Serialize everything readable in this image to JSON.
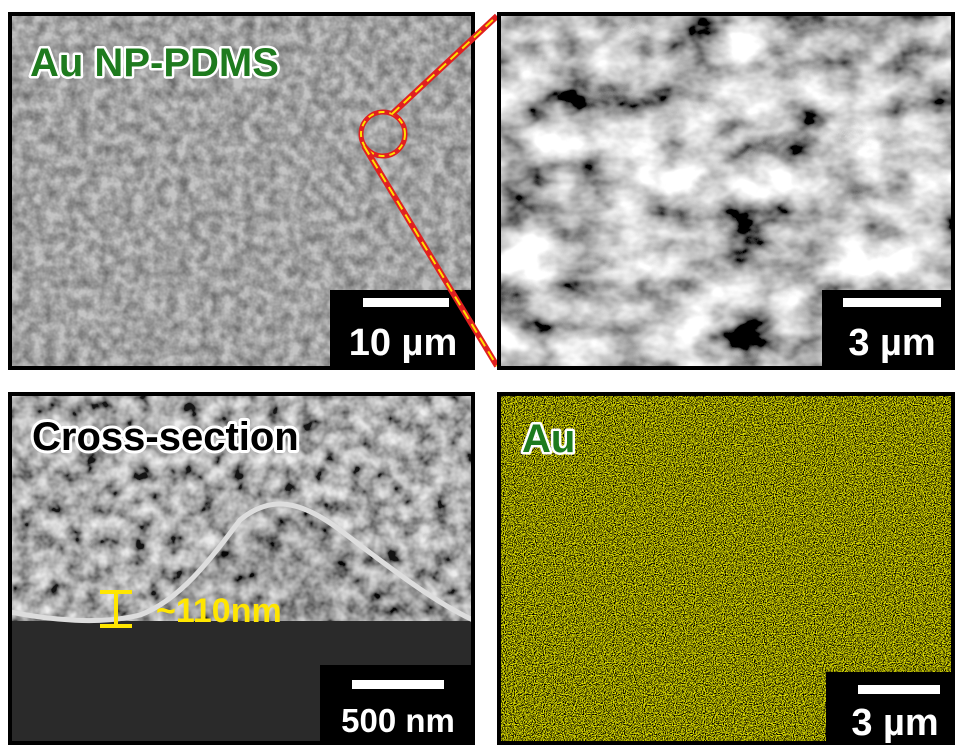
{
  "panels": [
    {
      "label": "Au NP-PDMS",
      "scale_bar": "10 µm"
    },
    {
      "scale_bar": "3 µm"
    },
    {
      "label": "Cross-section",
      "annotation": "~110nm",
      "scale_bar": "500 nm"
    },
    {
      "label": "Au",
      "scale_bar": "3 µm"
    }
  ]
}
